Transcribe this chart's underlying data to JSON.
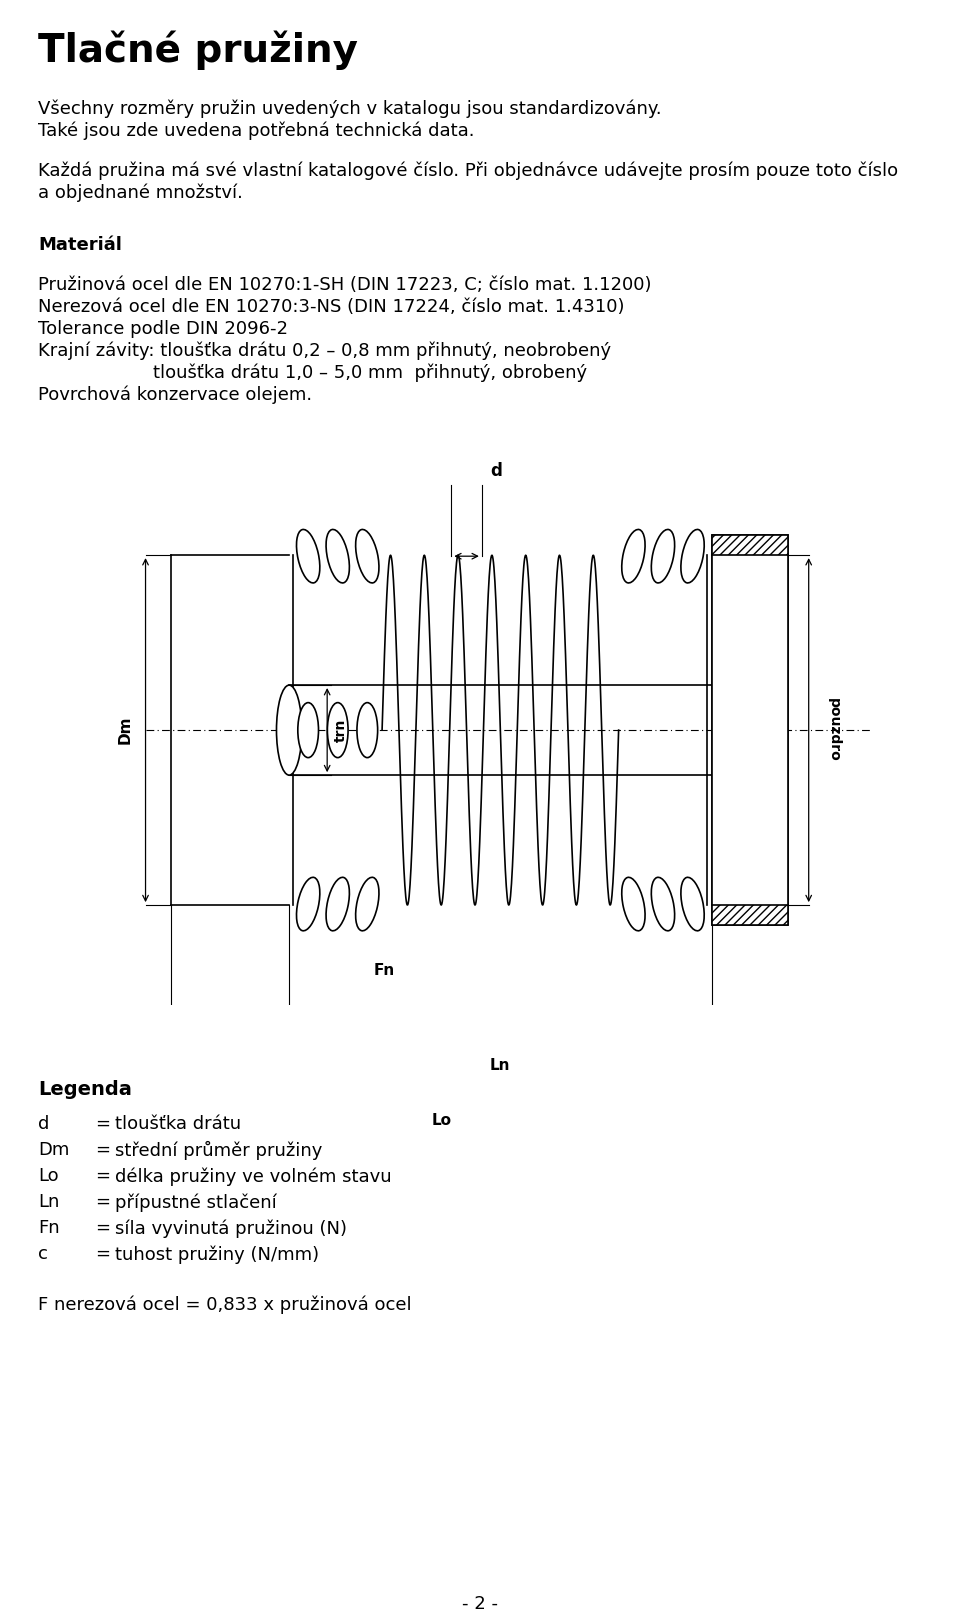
{
  "title": "Tlačné pružiny",
  "para1_line1": "Všechny rozměry pružin uvedených v katalogu jsou standardizovány.",
  "para1_line2": "Také jsou zde uvedena potřebná technická data.",
  "para2": "Každá pružina má své vlastní katalogové číslo. Při objednávce udávejte prosím pouze toto číslo\na objednané množství.",
  "section_material": "Materiál",
  "mat_line1": "Pružinová ocel dle EN 10270:1-SH (DIN 17223, C; číslo mat. 1.1200)",
  "mat_line2": "Nerezová ocel dle EN 10270:3-NS (DIN 17224, číslo mat. 1.4310)",
  "mat_line3": "Tolerance podle DIN 2096-2",
  "mat_line4": "Krajní závity: tloušťka drátu 0,2 – 0,8 mm přihnutý, neobrobený",
  "mat_line5": "                    tloušťka drátu 1,0 – 5,0 mm  přihnutý, obrobený",
  "mat_line6": "Povrchová konzervace olejem.",
  "legend_title": "Legenda",
  "legend_items": [
    [
      "d",
      "tloušťka drátu"
    ],
    [
      "Dm",
      "střední průměr pružiny"
    ],
    [
      "Lo",
      "délka pružiny ve volném stavu"
    ],
    [
      "Ln",
      "přípustné stlačení"
    ],
    [
      "Fn",
      "síla vyvinutá pružinou (N)"
    ],
    [
      "c",
      "tuhost pružiny (N/mm)"
    ]
  ],
  "footnote": "F nerezová ocel = 0,833 x pružinová ocel",
  "page_number": "- 2 -",
  "bg_color": "#ffffff",
  "text_color": "#000000",
  "diagram_color": "#000000",
  "hatch_color": "#000000"
}
